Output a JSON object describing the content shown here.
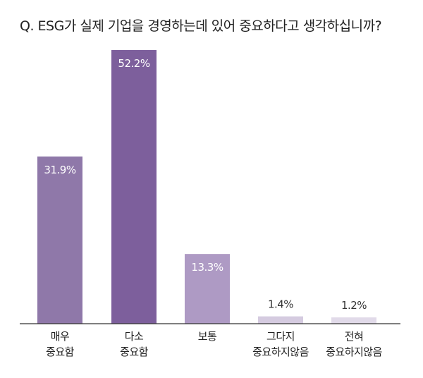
{
  "title": "Q. ESG가 실제 기업을 경영하는데 있어 중요하다고 생각하십니까?",
  "chart_data": {
    "type": "bar",
    "categories": [
      [
        "매우",
        "중요함"
      ],
      [
        "다소",
        "중요함"
      ],
      [
        "보통"
      ],
      [
        "그다지",
        "중요하지않음"
      ],
      [
        "전혀",
        "중요하지않음"
      ]
    ],
    "values": [
      31.9,
      52.2,
      13.3,
      1.4,
      1.2
    ],
    "value_labels": [
      "31.9%",
      "52.2%",
      "13.3%",
      "1.4%",
      "1.2%"
    ],
    "colors": [
      "#8f78a9",
      "#7d5f9c",
      "#ae9ac4",
      "#d5cbe0",
      "#e1dae9"
    ],
    "label_colors": [
      "#ffffff",
      "#ffffff",
      "#ffffff",
      "#333333",
      "#333333"
    ],
    "ylim": [
      0,
      52.2
    ],
    "grid": false,
    "legend": "none"
  }
}
